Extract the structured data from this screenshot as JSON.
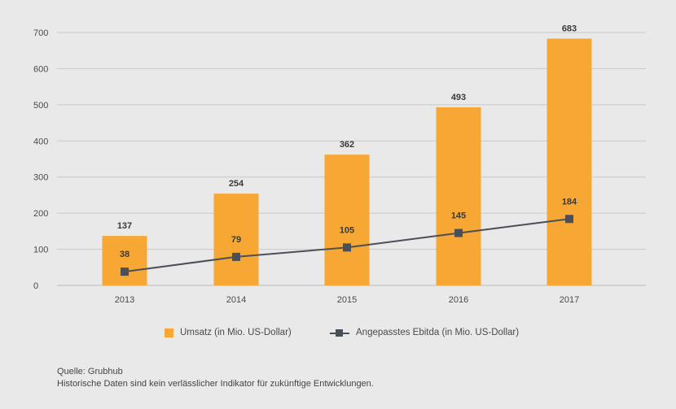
{
  "chart_data": {
    "type": "bar",
    "categories": [
      "2013",
      "2014",
      "2015",
      "2016",
      "2017"
    ],
    "series": [
      {
        "name": "Umsatz (in Mio. US-Dollar)",
        "type": "bar",
        "values": [
          137,
          254,
          362,
          493,
          683
        ],
        "color": "#f7a733"
      },
      {
        "name": "Angepasstes Ebitda (in Mio. US-Dollar)",
        "type": "line",
        "values": [
          38,
          79,
          105,
          145,
          184
        ],
        "color": "#4a5057"
      }
    ],
    "ylim": [
      0,
      700
    ],
    "yticks": [
      0,
      100,
      200,
      300,
      400,
      500,
      600,
      700
    ],
    "grid": true,
    "legend": "bottom"
  },
  "footer": {
    "source": "Quelle: Grubhub",
    "disclaimer": "Historische Daten sind kein verlässlicher Indikator für zukünftige Entwicklungen."
  }
}
